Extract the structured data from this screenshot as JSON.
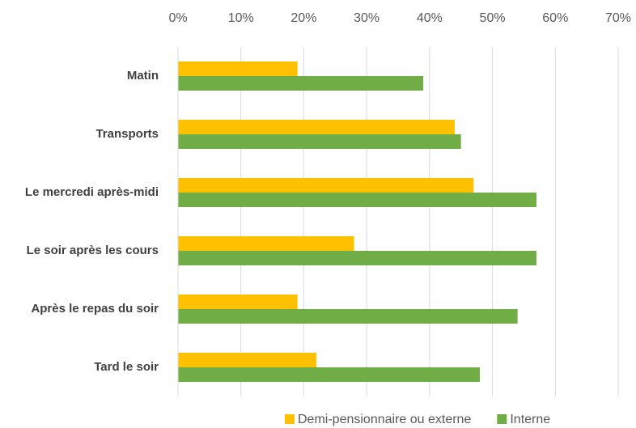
{
  "chart_data": {
    "type": "bar",
    "orientation": "horizontal",
    "categories": [
      "Matin",
      "Transports",
      "Le mercredi après-midi",
      "Le soir après les cours",
      "Après le repas du soir",
      "Tard le soir"
    ],
    "series": [
      {
        "name": "Demi-pensionnaire ou externe",
        "color": "#FFC000",
        "values": [
          19,
          44,
          47,
          28,
          19,
          22
        ]
      },
      {
        "name": "Interne",
        "color": "#70AD47",
        "values": [
          39,
          45,
          57,
          57,
          54,
          48
        ]
      }
    ],
    "xlim": [
      0,
      70
    ],
    "xticks": [
      {
        "value": 0,
        "label": "0%"
      },
      {
        "value": 10,
        "label": "10%"
      },
      {
        "value": 20,
        "label": "20%"
      },
      {
        "value": 30,
        "label": "30%"
      },
      {
        "value": 40,
        "label": "40%"
      },
      {
        "value": 50,
        "label": "50%"
      },
      {
        "value": 60,
        "label": "60%"
      },
      {
        "value": 70,
        "label": "70%"
      }
    ],
    "grid": true,
    "legend": "bottom"
  }
}
